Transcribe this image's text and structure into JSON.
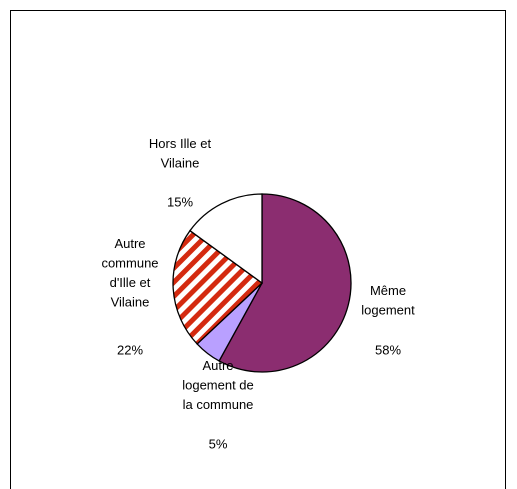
{
  "chart_data": {
    "type": "pie",
    "categories": [
      "Même\nlogement",
      "Autre\nlogement de\nla commune",
      "Autre\ncommune\nd'Ille et\nVilaine",
      "Hors Ille et\nVilaine"
    ],
    "values": [
      58,
      5,
      22,
      15
    ],
    "value_labels": [
      "58%",
      "5%",
      "22%",
      "15%"
    ],
    "colors": [
      "#8B2D70",
      "#B9A0FF",
      "#D42A10",
      "#FFFFFF"
    ],
    "hatched": [
      false,
      false,
      true,
      false
    ]
  }
}
